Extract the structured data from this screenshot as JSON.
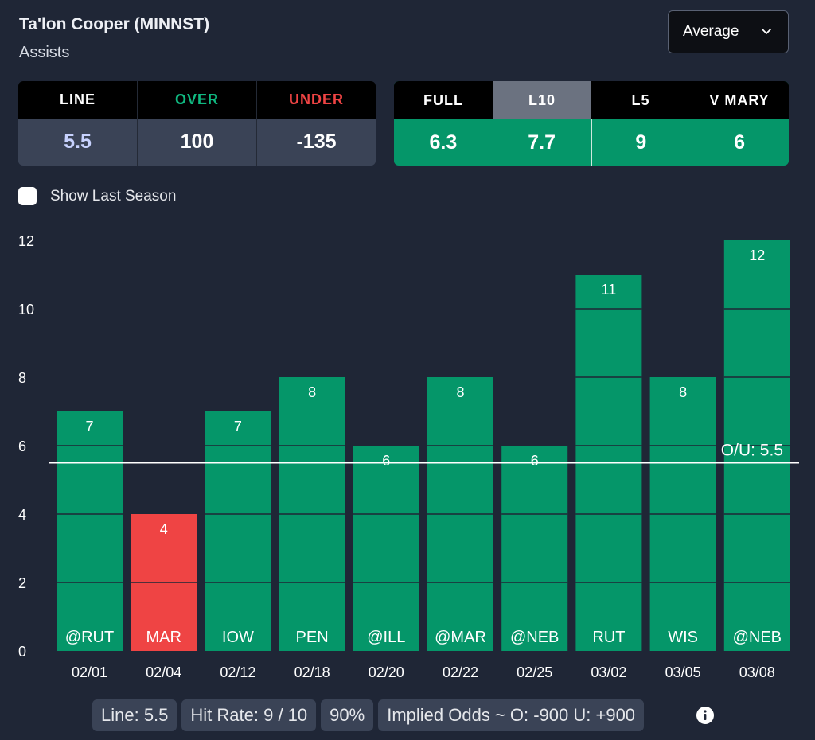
{
  "header": {
    "player": "Ta'lon Cooper (MINNST)",
    "stat": "Assists",
    "dropdown_value": "Average"
  },
  "odds": {
    "labels": [
      "LINE",
      "OVER",
      "UNDER"
    ],
    "values": [
      "5.5",
      "100",
      "-135"
    ],
    "over_color": "#10b981",
    "under_color": "#ef4444",
    "line_value_color": "#c7d2fe"
  },
  "averages": {
    "labels": [
      "FULL",
      "L10",
      "L5",
      "V MARY"
    ],
    "values": [
      "6.3",
      "7.7",
      "9",
      "6"
    ],
    "active": "L10"
  },
  "toggle": {
    "label": "Show Last Season",
    "checked": false
  },
  "chart_data": {
    "type": "bar",
    "categories": [
      "02/01",
      "02/04",
      "02/12",
      "02/18",
      "02/20",
      "02/22",
      "02/25",
      "03/02",
      "03/05",
      "03/08"
    ],
    "opponents": [
      "@RUT",
      "MAR",
      "IOW",
      "PEN",
      "@ILL",
      "@MAR",
      "@NEB",
      "RUT",
      "WIS",
      "@NEB"
    ],
    "values": [
      7,
      4,
      7,
      8,
      6,
      8,
      6,
      11,
      8,
      12
    ],
    "ylim": [
      0,
      12
    ],
    "yticks": [
      0,
      2,
      4,
      6,
      8,
      10,
      12
    ],
    "line": 5.5,
    "line_label": "O/U: 5.5",
    "over_color": "#059669",
    "under_color": "#ef4444"
  },
  "footer": {
    "line": "Line: 5.5",
    "hit_rate": "Hit Rate: 9 / 10",
    "pct": "90%",
    "implied": "Implied Odds ~ O: -900 U: +900"
  },
  "icons": {
    "dropdown": "chevron-down-icon",
    "info": "info-icon"
  }
}
